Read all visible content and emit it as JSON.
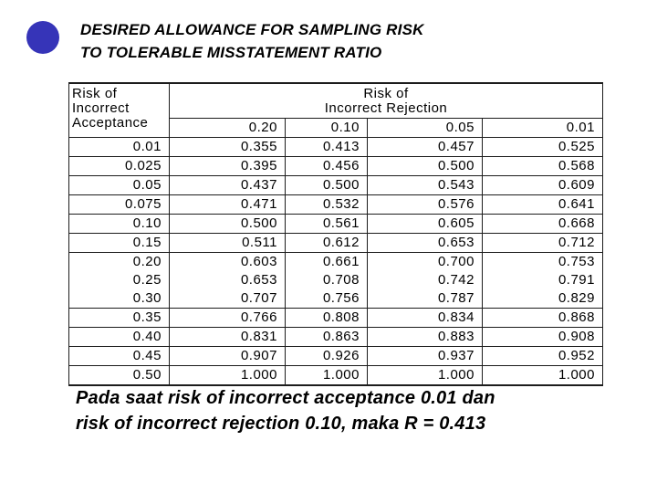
{
  "slide": {
    "title": {
      "line1": "DESIRED ALLOWANCE FOR SAMPLING RISK",
      "line2": "TO TOLERABLE MISSTATEMENT RATIO"
    },
    "bullet": {
      "color": "#3634b8"
    }
  },
  "table": {
    "row_header": {
      "line1": "Risk of",
      "line2": "Incorrect",
      "line3": "Acceptance"
    },
    "col_group_header": {
      "line1": "Risk of",
      "line2": "Incorrect Rejection"
    },
    "col_headers": [
      "0.20",
      "0.10",
      "0.05",
      "0.01"
    ],
    "rows": [
      {
        "acceptance": "0.01",
        "values": [
          "0.355",
          "0.413",
          "0.457",
          "0.525"
        ],
        "line_below": true
      },
      {
        "acceptance": "0.025",
        "values": [
          "0.395",
          "0.456",
          "0.500",
          "0.568"
        ],
        "line_below": true
      },
      {
        "acceptance": "0.05",
        "values": [
          "0.437",
          "0.500",
          "0.543",
          "0.609"
        ],
        "line_below": true
      },
      {
        "acceptance": "0.075",
        "values": [
          "0.471",
          "0.532",
          "0.576",
          "0.641"
        ],
        "line_below": true
      },
      {
        "acceptance": "0.10",
        "values": [
          "0.500",
          "0.561",
          "0.605",
          "0.668"
        ],
        "line_below": true
      },
      {
        "acceptance": "0.15",
        "values": [
          "0.511",
          "0.612",
          "0.653",
          "0.712"
        ],
        "line_below": true
      },
      {
        "acceptance": "0.20",
        "values": [
          "0.603",
          "0.661",
          "0.700",
          "0.753"
        ],
        "line_below": false
      },
      {
        "acceptance": "0.25",
        "values": [
          "0.653",
          "0.708",
          "0.742",
          "0.791"
        ],
        "line_below": false
      },
      {
        "acceptance": "0.30",
        "values": [
          "0.707",
          "0.756",
          "0.787",
          "0.829"
        ],
        "line_below": true
      },
      {
        "acceptance": "0.35",
        "values": [
          "0.766",
          "0.808",
          "0.834",
          "0.868"
        ],
        "line_below": true
      },
      {
        "acceptance": "0.40",
        "values": [
          "0.831",
          "0.863",
          "0.883",
          "0.908"
        ],
        "line_below": true
      },
      {
        "acceptance": "0.45",
        "values": [
          "0.907",
          "0.926",
          "0.937",
          "0.952"
        ],
        "line_below": true
      },
      {
        "acceptance": "0.50",
        "values": [
          "1.000",
          "1.000",
          "1.000",
          "1.000"
        ],
        "line_below": true
      }
    ]
  },
  "caption": {
    "line1": "Pada saat risk of incorrect acceptance 0.01 dan",
    "line2": "risk of incorrect rejection 0.10, maka R = 0.413"
  }
}
